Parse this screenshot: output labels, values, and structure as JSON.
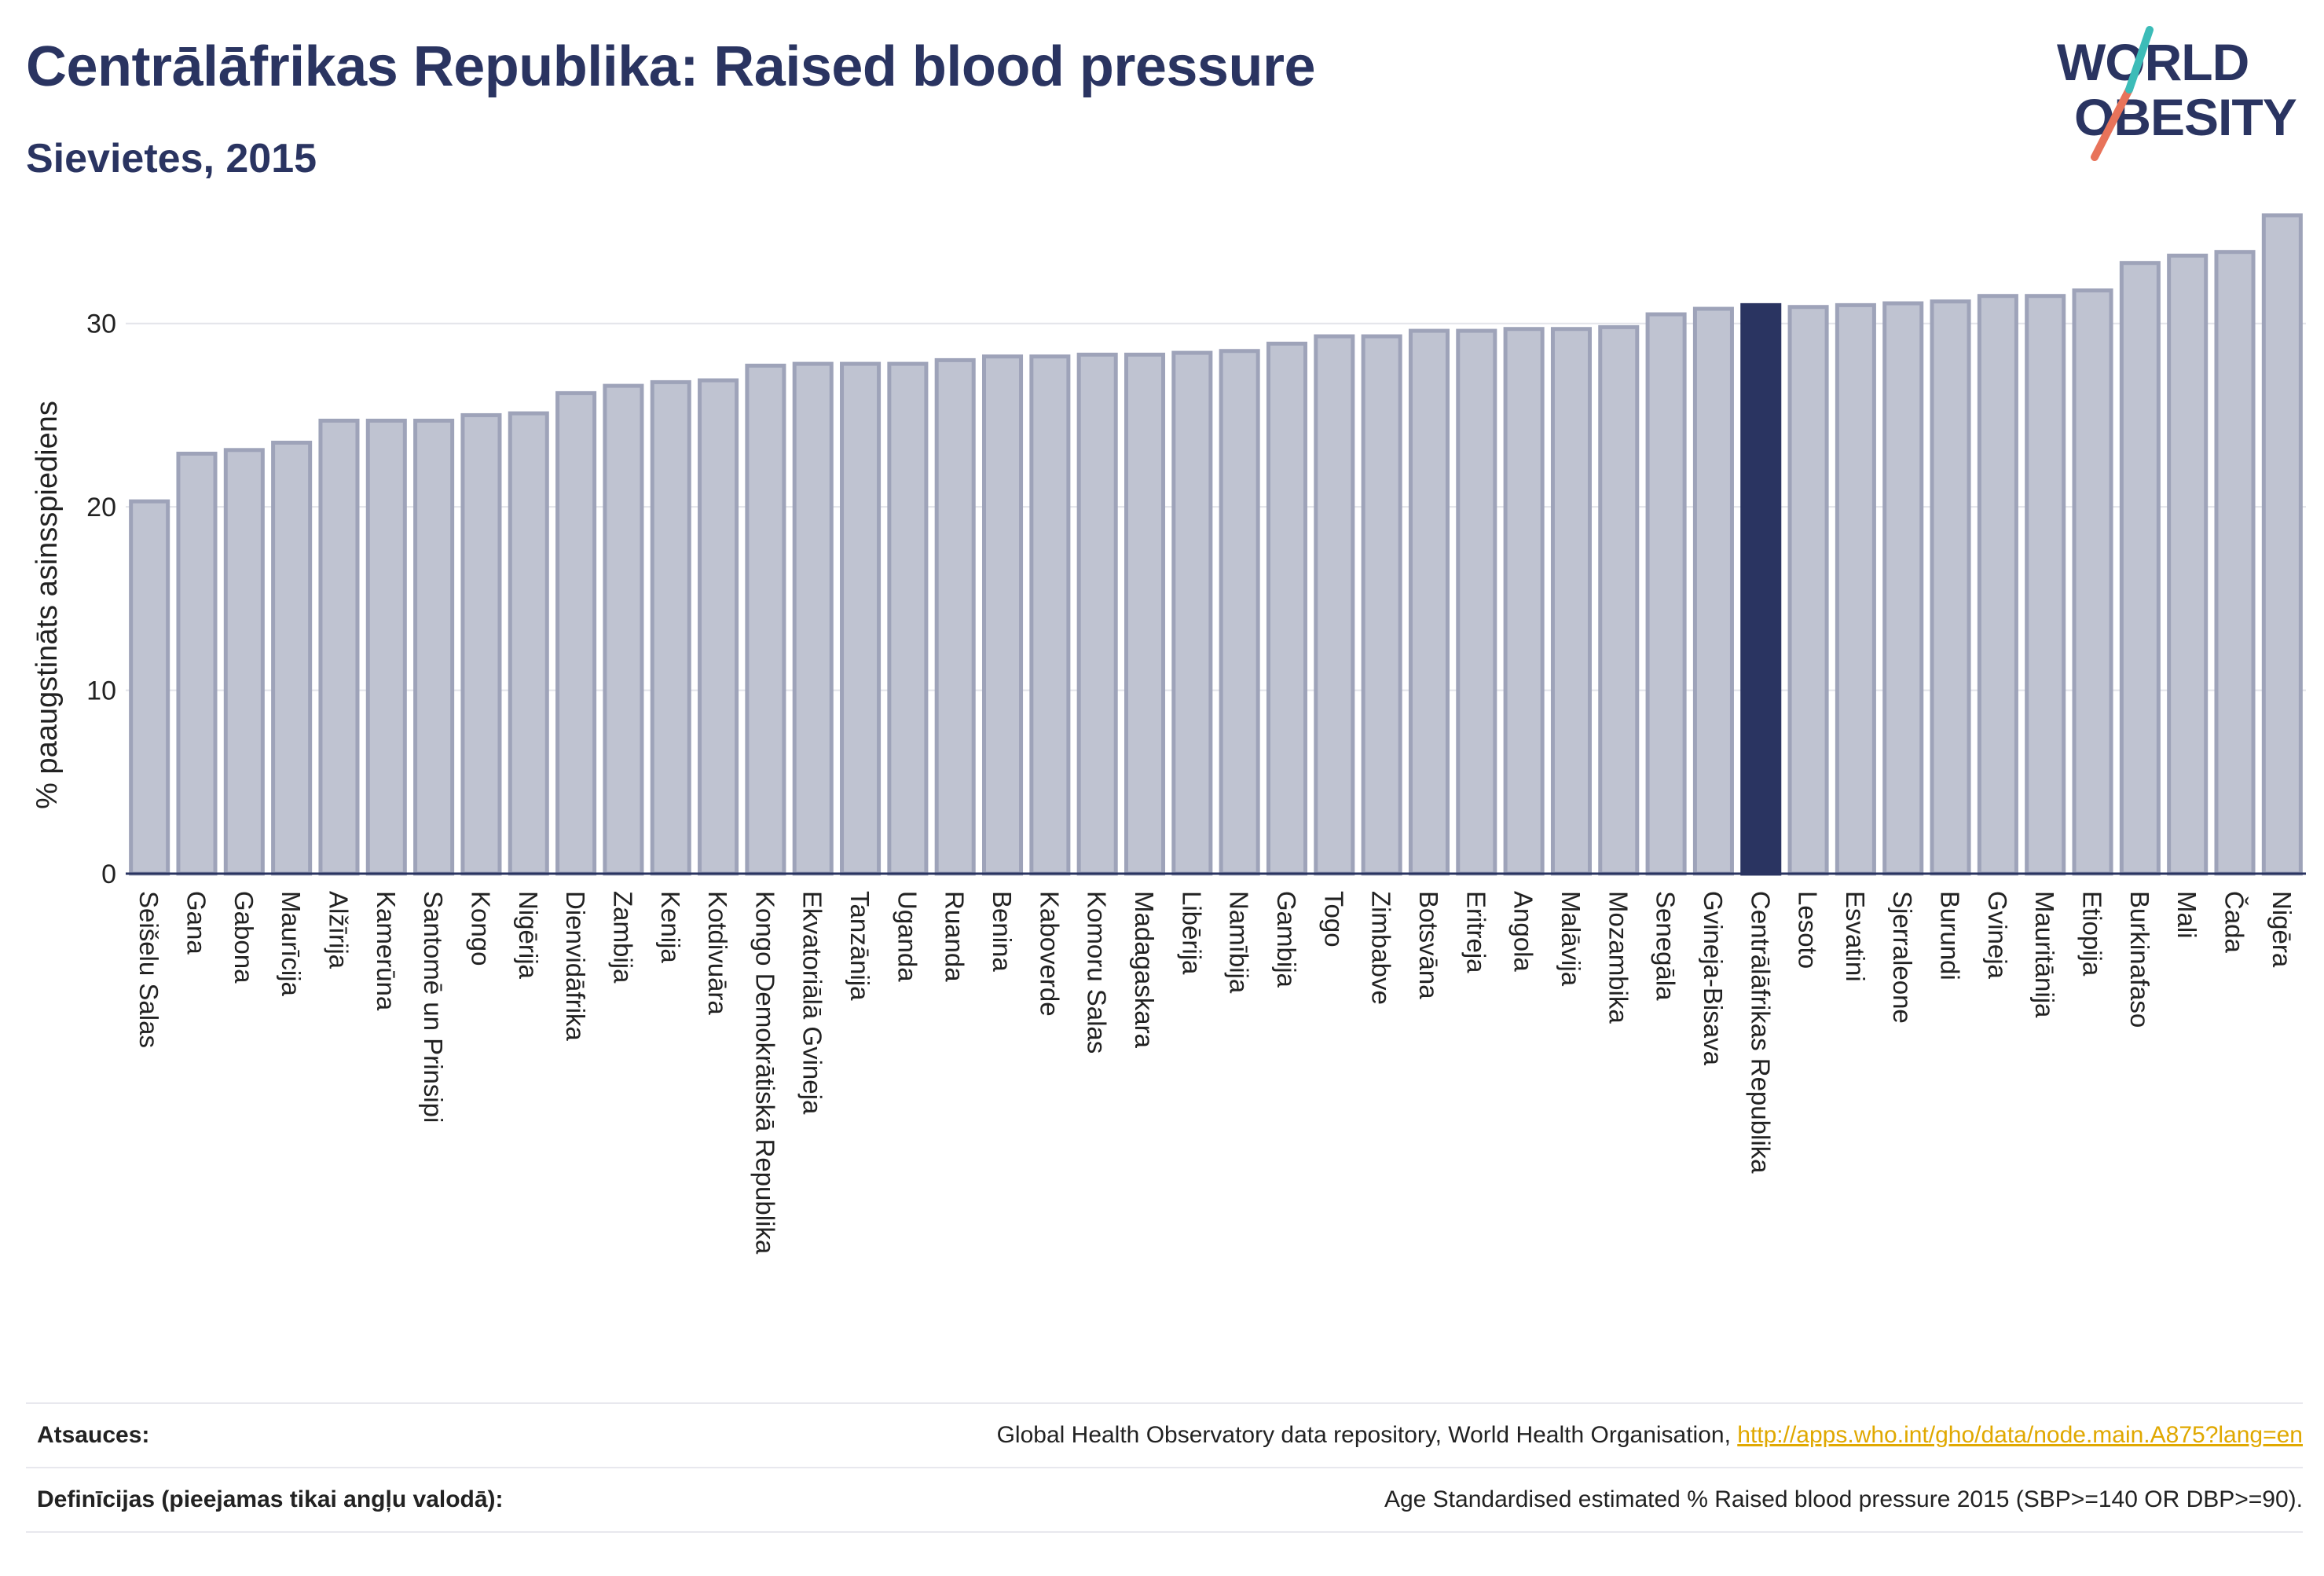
{
  "header": {
    "title": "Centrālāfrikas Republika: Raised blood pressure",
    "subtitle": "Sievietes, 2015"
  },
  "logo": {
    "line1": "WORLD",
    "line2": "OBESITY"
  },
  "colors": {
    "bar": "#bfc3d1",
    "bar_edge": "#9ea3b9",
    "highlight": "#2a3461",
    "title": "#2a3461"
  },
  "chart_data": {
    "type": "bar",
    "ylabel": "% paaugstināts asinsspiediens",
    "ylim": [
      0,
      36.5
    ],
    "yticks": [
      0,
      10,
      20,
      30
    ],
    "grid": true,
    "highlight": "Centrālāfrikas Republika",
    "categories": [
      "Seišelu Salas",
      "Gana",
      "Gabona",
      "Maurīcija",
      "Alžīrija",
      "Kamerūna",
      "Santomē un Prinsipi",
      "Kongo",
      "Nigērija",
      "Dienvidāfrika",
      "Zambija",
      "Kenija",
      "Kotdivuāra",
      "Kongo Demokrātiskā Republika",
      "Ekvatoriālā Gvineja",
      "Tanzānija",
      "Uganda",
      "Ruanda",
      "Benina",
      "Kaboverde",
      "Komoru Salas",
      "Madagaskara",
      "Libērija",
      "Namībija",
      "Gambija",
      "Togo",
      "Zimbabve",
      "Botsvāna",
      "Eritreja",
      "Angola",
      "Malāvija",
      "Mozambika",
      "Senegāla",
      "Gvineja-Bisava",
      "Centrālāfrikas Republika",
      "Lesoto",
      "Esvatini",
      "Sjerraleone",
      "Burundi",
      "Gvineja",
      "Mauritānija",
      "Etiopija",
      "Burkinafaso",
      "Mali",
      "Čada",
      "Nigēra"
    ],
    "values": [
      20.3,
      22.9,
      23.1,
      23.5,
      24.7,
      24.7,
      24.7,
      25.0,
      25.1,
      26.2,
      26.6,
      26.8,
      26.9,
      27.7,
      27.8,
      27.8,
      27.8,
      28.0,
      28.2,
      28.2,
      28.3,
      28.3,
      28.4,
      28.5,
      28.9,
      29.3,
      29.3,
      29.6,
      29.6,
      29.7,
      29.7,
      29.8,
      30.5,
      30.8,
      31.0,
      30.9,
      31.0,
      31.1,
      31.2,
      31.5,
      31.5,
      31.8,
      33.3,
      33.7,
      33.9,
      35.9
    ]
  },
  "footer": {
    "sources_label": "Atsauces:",
    "sources_text": "Global Health Observatory data repository, World Health Organisation, ",
    "sources_link": "http://apps.who.int/gho/data/node.main.A875?lang=en",
    "definitions_label": "Definīcijas (pieejamas tikai angļu valodā):",
    "definitions_text": "Age Standardised estimated % Raised blood pressure 2015 (SBP>=140 OR DBP>=90)."
  }
}
